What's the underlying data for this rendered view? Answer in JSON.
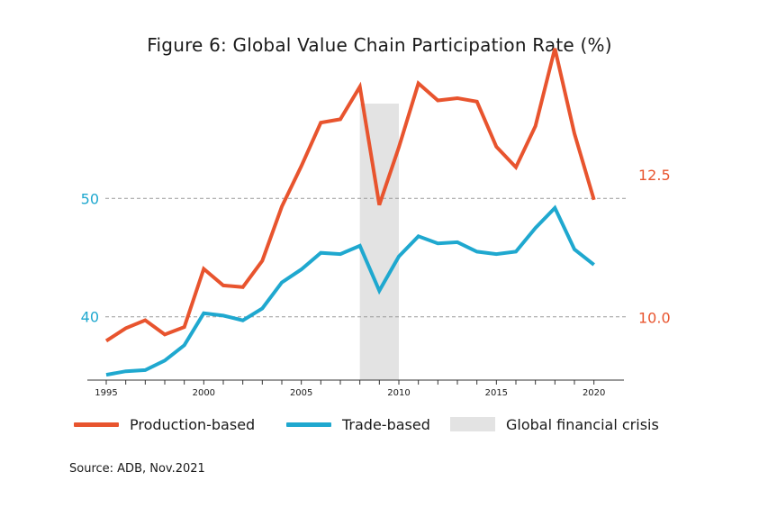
{
  "title": "Figure 6: Global Value Chain Participation Rate (%)",
  "source": "Source: ADB, Nov.2021",
  "colors": {
    "production": "#e8542e",
    "trade": "#1fa8cf",
    "crisis": "#e3e3e3",
    "axis_left": "#1fa8cf",
    "axis_right": "#e8542e",
    "grid": "#9a9a9a",
    "axis": "#333333"
  },
  "legend": {
    "production_label": "Production-based",
    "trade_label": "Trade-based",
    "crisis_label": "Global financial crisis"
  },
  "chart_data": {
    "type": "line",
    "title": "Figure 6: Global Value Chain Participation Rate (%)",
    "x": [
      1995,
      1996,
      1997,
      1998,
      1999,
      2000,
      2001,
      2002,
      2003,
      2004,
      2005,
      2006,
      2007,
      2008,
      2009,
      2010,
      2011,
      2012,
      2013,
      2014,
      2015,
      2016,
      2017,
      2018,
      2019,
      2020
    ],
    "x_ticks": [
      "1995",
      "2000",
      "2005",
      "2010",
      "2015",
      "2020"
    ],
    "xlim": [
      1994.4,
      2021.4
    ],
    "y_left": {
      "ticks": [
        "40",
        "50"
      ],
      "range": [
        34.5,
        59.0
      ],
      "color": "#1fa8cf"
    },
    "y_right": {
      "ticks": [
        "10.0",
        "12.5"
      ],
      "range": [
        8.87,
        13.95
      ],
      "color": "#e8542e"
    },
    "gridlines_left_axis": [
      40,
      50
    ],
    "series": [
      {
        "name": "Production-based",
        "axis": "right",
        "color": "#e8542e",
        "values": [
          9.59,
          9.81,
          9.95,
          9.7,
          9.83,
          10.85,
          10.56,
          10.53,
          10.99,
          11.94,
          12.65,
          13.41,
          13.47,
          14.04,
          11.97,
          12.98,
          14.1,
          13.8,
          13.84,
          13.78,
          12.99,
          12.63,
          13.35,
          14.71,
          13.22,
          12.06
        ]
      },
      {
        "name": "Trade-based",
        "axis": "left",
        "color": "#1fa8cf",
        "values": [
          35.1,
          35.4,
          35.5,
          36.3,
          37.6,
          40.3,
          40.1,
          39.7,
          40.7,
          42.9,
          44.0,
          45.4,
          45.3,
          46.0,
          42.2,
          45.1,
          46.8,
          46.2,
          46.3,
          45.5,
          45.3,
          45.5,
          47.5,
          49.2,
          45.7,
          44.4
        ]
      }
    ],
    "shaded_region": {
      "label": "Global financial crisis",
      "x_start": 2008,
      "x_end": 2010
    },
    "legend_position": "bottom",
    "grid": "dashed horizontal at tick values"
  }
}
